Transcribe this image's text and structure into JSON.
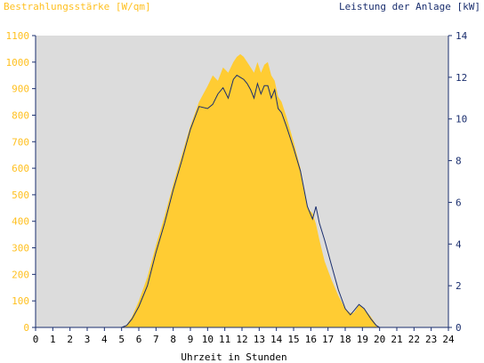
{
  "chart_data": {
    "type": "area",
    "y_left_label": "Bestrahlungsstärke [W/qm]",
    "y_right_label": "Leistung der Anlage [kW]",
    "xlabel": "Uhrzeit in Stunden",
    "xlim": [
      0,
      24
    ],
    "ylim_left": [
      0,
      1100
    ],
    "ylim_right": [
      0,
      14
    ],
    "x_ticks": [
      "0",
      "1",
      "2",
      "3",
      "4",
      "5",
      "6",
      "7",
      "8",
      "9",
      "10",
      "11",
      "12",
      "13",
      "14",
      "15",
      "16",
      "17",
      "18",
      "19",
      "20",
      "21",
      "22",
      "23",
      "24"
    ],
    "y_left_ticks": [
      "0",
      "100",
      "200",
      "300",
      "400",
      "500",
      "600",
      "700",
      "800",
      "900",
      "1000",
      "1100"
    ],
    "y_right_ticks": [
      "0",
      "2",
      "4",
      "6",
      "8",
      "10",
      "12",
      "14"
    ],
    "grid": false,
    "colors": {
      "background": "#dcdcdc",
      "irradiance": "#ffcc33",
      "power": "#1a2e6e",
      "left_axis_text": "#ffc020",
      "right_axis_text": "#1a2e6e",
      "axis": "#1a2e6e"
    },
    "series": [
      {
        "name": "Bestrahlungsstärke [W/qm]",
        "axis": "left",
        "style": "filled-area",
        "x": [
          0,
          5,
          5.3,
          5.6,
          6.0,
          6.5,
          7.0,
          7.5,
          8.0,
          8.5,
          9.0,
          9.5,
          10.0,
          10.3,
          10.6,
          10.9,
          11.2,
          11.5,
          11.7,
          11.9,
          12.1,
          12.3,
          12.5,
          12.7,
          12.9,
          13.1,
          13.3,
          13.5,
          13.7,
          13.9,
          14.1,
          14.3,
          14.6,
          15.0,
          15.4,
          15.8,
          16.1,
          16.3,
          16.5,
          16.8,
          17.2,
          17.6,
          18.0,
          18.3,
          18.5,
          18.8,
          19.1,
          19.5,
          19.8,
          20.0,
          24
        ],
        "values": [
          0,
          0,
          10,
          40,
          100,
          190,
          310,
          420,
          540,
          650,
          760,
          850,
          910,
          950,
          930,
          980,
          960,
          1000,
          1020,
          1030,
          1020,
          1000,
          980,
          960,
          1000,
          960,
          990,
          1000,
          950,
          930,
          870,
          850,
          790,
          700,
          600,
          450,
          430,
          390,
          330,
          250,
          180,
          120,
          70,
          55,
          55,
          85,
          70,
          40,
          10,
          0,
          0
        ]
      },
      {
        "name": "Leistung der Anlage [kW]",
        "axis": "right",
        "style": "line",
        "x": [
          0,
          5,
          5.3,
          5.6,
          6.0,
          6.5,
          7.0,
          7.5,
          8.0,
          8.5,
          9.0,
          9.5,
          10.0,
          10.3,
          10.6,
          10.9,
          11.2,
          11.5,
          11.7,
          11.9,
          12.1,
          12.3,
          12.5,
          12.7,
          12.9,
          13.1,
          13.3,
          13.5,
          13.7,
          13.9,
          14.1,
          14.3,
          14.6,
          15.0,
          15.4,
          15.8,
          16.1,
          16.3,
          16.5,
          16.8,
          17.2,
          17.6,
          18.0,
          18.3,
          18.5,
          18.8,
          19.1,
          19.5,
          19.8,
          20.0,
          24
        ],
        "values": [
          0,
          0,
          0.1,
          0.4,
          1.0,
          2.0,
          3.6,
          5.0,
          6.6,
          8.0,
          9.5,
          10.6,
          10.5,
          10.7,
          11.2,
          11.5,
          11.0,
          11.9,
          12.1,
          12.0,
          11.9,
          11.7,
          11.4,
          11.0,
          11.7,
          11.2,
          11.6,
          11.6,
          11.0,
          11.4,
          10.5,
          10.3,
          9.6,
          8.6,
          7.5,
          5.8,
          5.2,
          5.8,
          5.0,
          4.2,
          3.0,
          1.8,
          0.9,
          0.6,
          0.8,
          1.1,
          0.9,
          0.4,
          0.1,
          0,
          0
        ]
      }
    ]
  }
}
